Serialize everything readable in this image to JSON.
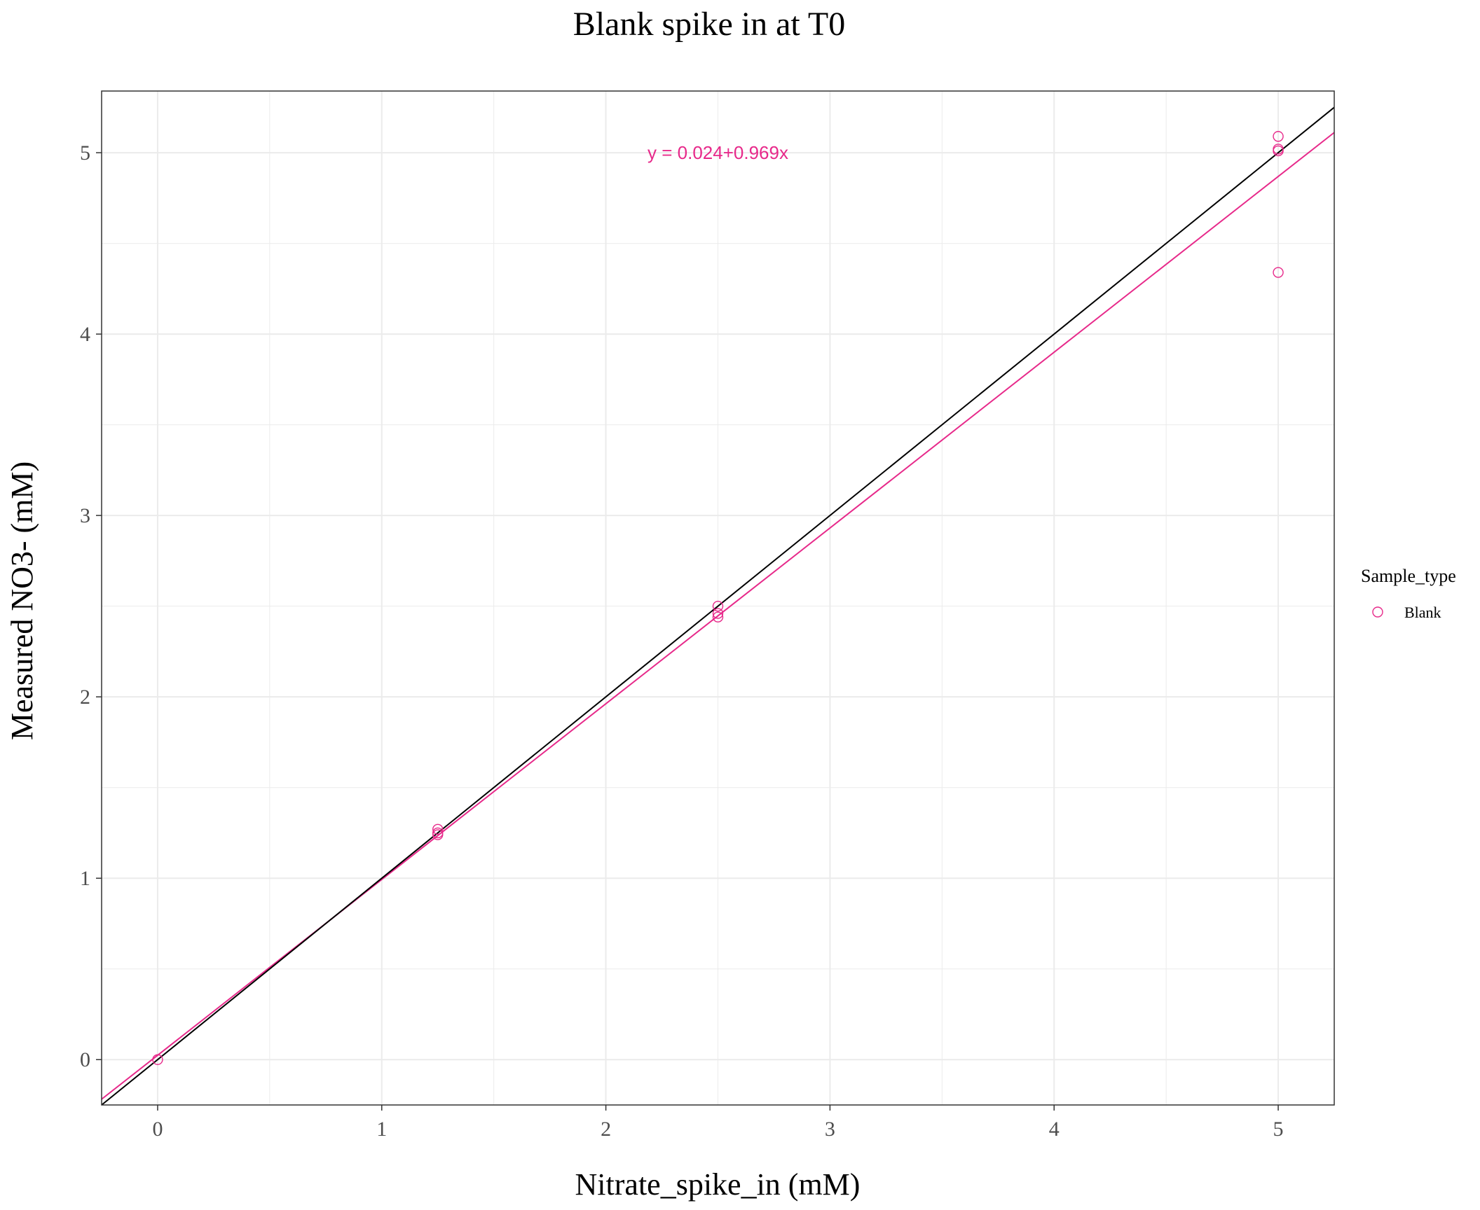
{
  "chart_data": {
    "type": "scatter",
    "title": "Blank spike in at T0",
    "xlabel": "Nitrate_spike_in (mM)",
    "ylabel": "Measured NO3- (mM)",
    "xlim": [
      -0.25,
      5.25
    ],
    "ylim": [
      -0.25,
      5.34
    ],
    "x_ticks": [
      0,
      1,
      2,
      3,
      4,
      5
    ],
    "y_ticks": [
      0,
      1,
      2,
      3,
      4,
      5
    ],
    "x_tick_labels": [
      "0",
      "1",
      "2",
      "3",
      "4",
      "5"
    ],
    "y_tick_labels": [
      "0",
      "1",
      "2",
      "3",
      "4",
      "5"
    ],
    "grid": true,
    "legend": {
      "title": "Sample_type",
      "position": "right",
      "entries": [
        "Blank"
      ]
    },
    "colors": {
      "series": "#e7298a",
      "reference_line": "#000000",
      "grid": "#ebebeb",
      "border": "#333333"
    },
    "series": [
      {
        "name": "Blank",
        "marker": "open-circle",
        "x": [
          0,
          1.25,
          1.25,
          1.25,
          2.5,
          2.5,
          2.5,
          5,
          5,
          5,
          5
        ],
        "y": [
          0,
          1.27,
          1.25,
          1.24,
          2.5,
          2.46,
          2.44,
          5.09,
          5.02,
          5.01,
          4.34
        ]
      }
    ],
    "lines": [
      {
        "name": "fit",
        "kind": "regression",
        "intercept": 0.024,
        "slope": 0.969,
        "color": "#e7298a"
      },
      {
        "name": "reference",
        "kind": "identity",
        "intercept": 0,
        "slope": 1,
        "color": "#000000"
      }
    ],
    "annotations": [
      {
        "text": "y = 0.024+0.969x",
        "x": 2.5,
        "y": 5.0,
        "color": "#e7298a"
      }
    ]
  }
}
